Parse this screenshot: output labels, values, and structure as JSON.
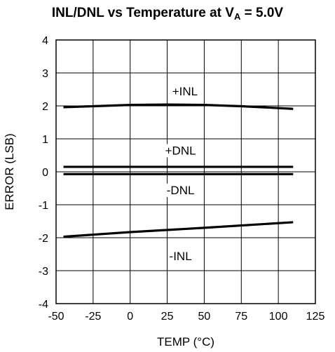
{
  "chart_data": {
    "type": "line",
    "title_main": "INL/DNL vs Temperature at V",
    "title_sub": "A",
    "title_tail": " = 5.0V",
    "xlabel": "TEMP (°C)",
    "ylabel": "ERROR (LSB)",
    "xlim": [
      -50,
      125
    ],
    "ylim": [
      -4,
      4
    ],
    "x_ticks": [
      -50,
      -25,
      0,
      25,
      50,
      75,
      100,
      125
    ],
    "y_ticks": [
      -4,
      -3,
      -2,
      -1,
      0,
      1,
      2,
      3,
      4
    ],
    "grid": true,
    "series": [
      {
        "name": "+INL",
        "x": [
          -45,
          -25,
          0,
          25,
          50,
          75,
          110
        ],
        "y": [
          1.96,
          1.99,
          2.03,
          2.04,
          2.03,
          1.99,
          1.91
        ]
      },
      {
        "name": "+DNL",
        "x": [
          -45,
          110
        ],
        "y": [
          0.15,
          0.15
        ]
      },
      {
        "name": "-DNL",
        "x": [
          -45,
          110
        ],
        "y": [
          -0.07,
          -0.07
        ]
      },
      {
        "name": "-INL",
        "x": [
          -45,
          0,
          50,
          110
        ],
        "y": [
          -1.97,
          -1.83,
          -1.7,
          -1.53
        ]
      }
    ],
    "series_label_anchor": [
      {
        "x": 37,
        "y": 2.45
      },
      {
        "x": 34,
        "y": 0.65
      },
      {
        "x": 34,
        "y": -0.55
      },
      {
        "x": 34,
        "y": -2.55
      }
    ]
  }
}
